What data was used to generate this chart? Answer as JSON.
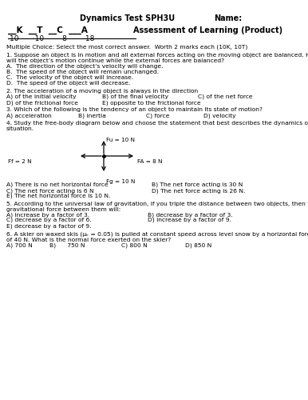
{
  "title_left": "Dynamics Test SPH3U",
  "title_right": "Name:",
  "subtitle_ktca": "__K  __T  __C  ___A",
  "subtitle_scores": "10       10        8        18",
  "subtitle_right": "Assessment of Learning (Product)",
  "mc_header": "Multiple Choice: Select the most correct answer.  Worth 2 marks each (10K, 10T)",
  "q1": "1. Suppose an object is in motion and all external forces acting on the moving object are balanced. How\nwill the object’s motion continue while the external forces are balanced?",
  "q1a": "A.  The direction of the object’s velocity will change.",
  "q1b": "B.  The speed of the object will remain unchanged.",
  "q1c": "C.  The velocity of the object will increase.",
  "q1d": "D.  The speed of the object will decrease.",
  "q2": "2. The acceleration of a moving object is always in the direction",
  "q2a": "A) of the initial velocity",
  "q2b": "B) of the final velocity",
  "q2c": "C) of the net force",
  "q2d": "D) of the frictional force",
  "q2e": "E) opposite to the frictional force",
  "q3": "3. Which of the following is the tendency of an object to maintain its state of motion?",
  "q3a": "A) acceleration",
  "q3b": "B) inertia",
  "q3c": "C) force",
  "q3d": "D) velocity",
  "q4": "4. Study the free-body diagram below and choose the statement that best describes the dynamics of the\nsituation.",
  "q4_fu": "Fu = 10 N",
  "q4_fd": "Fg = 10 N",
  "q4_fl": "Ff = 2 N",
  "q4_fr": "FA = 8 N",
  "q4a": "A) There is no net horizontal force",
  "q4b": "B) The net force acting is 30 N",
  "q4c": "C) The net force acting is 6 N",
  "q4d": "D) The net force acting is 26 N.",
  "q4e": "E) The net horizontal force is 10 N.",
  "q5": "5. According to the universal law of gravitation, if you triple the distance between two objects, then the\ngravitational force between them will:",
  "q5a": "A) increase by a factor of 3.",
  "q5b": "B) decrease by a factor of 3.",
  "q5c": "C) decrease by a factor of 6.",
  "q5d": "D) increase by a factor of 9.",
  "q5e": "E) decrease by a factor of 9.",
  "q6": "6. A skier on waxed skis (μₖ = 0.05) is pulled at constant speed across level snow by a horizontal force\nof 40 N. What is the normal force exerted on the skier?",
  "q6a": "A) 700 N",
  "q6b": "B)      750 N",
  "q6c": "C) 800 N",
  "q6d": "D) 850 N",
  "bg_color": "#ffffff"
}
